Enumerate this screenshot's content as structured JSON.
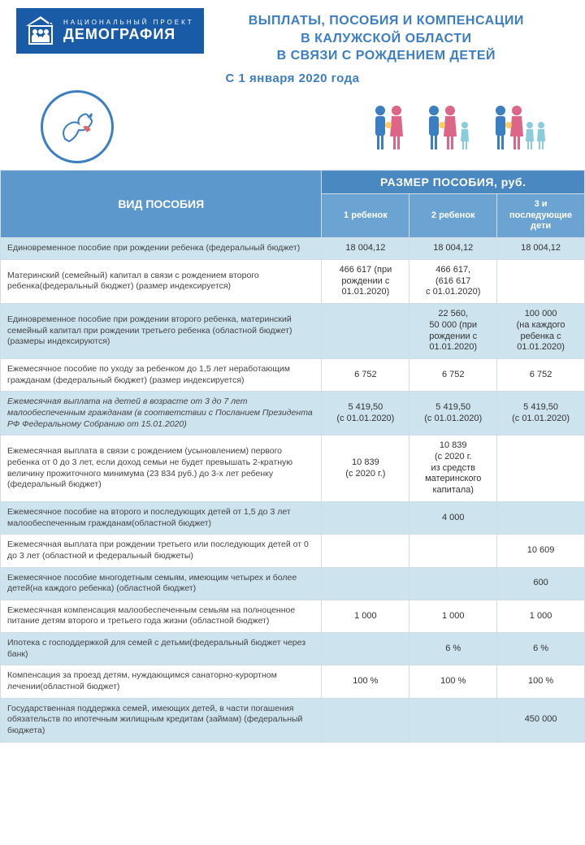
{
  "logo": {
    "small": "НАЦИОНАЛЬНЫЙ ПРОЕКТ",
    "big": "ДЕМОГРАФИЯ",
    "bg_color": "#1a5ba8"
  },
  "title": {
    "line1": "ВЫПЛАТЫ, ПОСОБИЯ И КОМПЕНСАЦИИ",
    "line2": "В КАЛУЖСКОЙ ОБЛАСТИ",
    "line3": "В СВЯЗИ С РОЖДЕНИЕМ ДЕТЕЙ",
    "subtitle": "С 1 января 2020 года",
    "color": "#3b7ec2"
  },
  "table": {
    "header_type": "ВИД ПОСОБИЯ",
    "header_size": "РАЗМЕР ПОСОБИЯ, руб.",
    "sub_headers": [
      "1\nребенок",
      "2\nребенок",
      "3 и\nпоследующие\nдети"
    ],
    "colors": {
      "header_bg": "#5d98cc",
      "size_header_bg": "#4a88c2",
      "sub_header_bg": "#6ba3d3",
      "row_blue": "#cde3ee",
      "row_white": "#ffffff",
      "border": "#d0dce8"
    },
    "col_widths": [
      "55%",
      "15%",
      "15%",
      "15%"
    ],
    "rows": [
      {
        "style": "blue",
        "desc": "Единовременное пособие при рождении ребенка (федеральный бюджет)",
        "vals": [
          "18 004,12",
          "18 004,12",
          "18 004,12"
        ]
      },
      {
        "style": "white",
        "desc": "Материнский (семейный) капитал в связи с рождением второго ребенка(федеральный бюджет) (размер индексируется)",
        "vals": [
          "466 617 (при\nрождении с\n01.01.2020)",
          "466 617,\n(616 617\nс 01.01.2020)",
          ""
        ]
      },
      {
        "style": "blue",
        "desc": "Единовременное пособие при рождении второго ребенка, материнский семейный капитал при рождении третьего ребенка (областной бюджет) (размеры индексируются)",
        "vals": [
          "",
          "22 560,\n50 000 (при\nрождении с\n01.01.2020)",
          "100 000\n(на каждого\nребенка с\n01.01.2020)"
        ]
      },
      {
        "style": "white",
        "desc": "Ежемесячное пособие по уходу за ребенком до 1,5 лет неработающим гражданам (федеральный бюджет) (размер индексируется)",
        "vals": [
          "6 752",
          "6 752",
          "6 752"
        ]
      },
      {
        "style": "blue italic",
        "desc": "Ежемесячная выплата на детей в возрасте от 3 до 7 лет малообеспеченным гражданам (в соответствии с Посланием Президента РФ Федеральному Собранию от 15.01.2020)",
        "vals": [
          "5 419,50\n(с 01.01.2020)",
          "5 419,50\n(с 01.01.2020)",
          "5 419,50\n(с 01.01.2020)"
        ]
      },
      {
        "style": "white",
        "desc": "Ежемесячная выплата в связи с рождением (усыновлением) первого ребенка от 0 до 3 лет, если доход семьи не будет превышать 2-кратную величину прожиточного минимума (23 834 руб.) до 3-х лет ребенку (федеральный бюджет)",
        "vals": [
          "10 839\n(с 2020 г.)",
          "10 839\n(с 2020 г.\nиз средств\nматеринского\nкапитала)",
          ""
        ]
      },
      {
        "style": "blue",
        "desc": "Ежемесячное пособие на второго и последующих детей от 1,5 до 3 лет малообеспеченным гражданам(областной бюджет)",
        "vals": [
          "",
          "4 000",
          ""
        ]
      },
      {
        "style": "white",
        "desc": "Ежемесячная выплата при рождении третьего или последующих детей от 0 до 3 лет (областной и федеральный бюджеты)",
        "vals": [
          "",
          "",
          "10 609"
        ]
      },
      {
        "style": "blue",
        "desc": "Ежемесячное пособие многодетным семьям, имеющим четырех и более детей(на каждого ребенка) (областной бюджет)",
        "vals": [
          "",
          "",
          "600"
        ]
      },
      {
        "style": "white",
        "desc": "Ежемесячная компенсация малообеспеченным семьям на полноценное питание детям второго и третьего года жизни (областной бюджет)",
        "vals": [
          "1 000",
          "1 000",
          "1 000"
        ]
      },
      {
        "style": "blue",
        "desc": "Ипотека с господдержкой для семей с детьми(федеральный бюджет через банк)",
        "vals": [
          "",
          "6 %",
          "6 %"
        ]
      },
      {
        "style": "white",
        "desc": "Компенсация за проезд детям, нуждающимся санаторно-курортном лечении(областной бюджет)",
        "vals": [
          "100 %",
          "100 %",
          "100 %"
        ]
      },
      {
        "style": "blue",
        "desc": "Государственная поддержка семей, имеющих детей, в части погашения обязательств по ипотечным жилищным кредитам (займам) (федеральный бюджета)",
        "vals": [
          "",
          "",
          "450 000"
        ]
      }
    ]
  }
}
